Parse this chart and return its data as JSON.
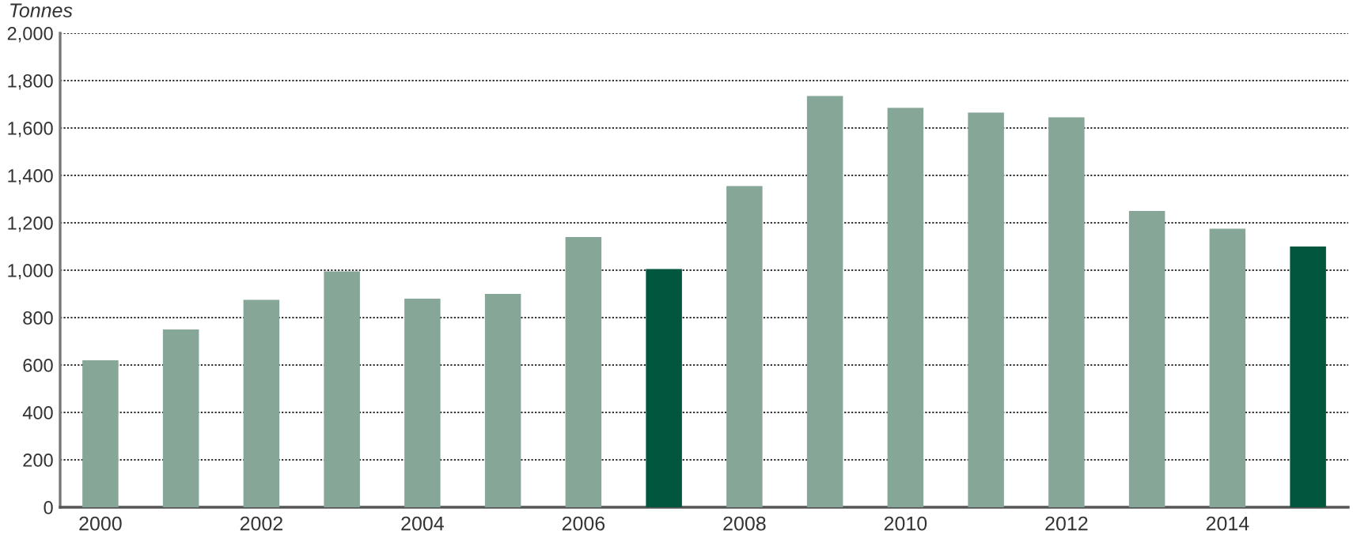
{
  "chart_data": {
    "type": "bar",
    "ylabel": "Tonnes",
    "categories": [
      "2000",
      null,
      "2002",
      null,
      "2004",
      null,
      "2006",
      null,
      "2008",
      null,
      "2010",
      null,
      "2012",
      null,
      "2014",
      null
    ],
    "values": [
      615,
      745,
      870,
      990,
      875,
      895,
      1135,
      1000,
      1350,
      1730,
      1680,
      1660,
      1640,
      1245,
      1170,
      1095
    ],
    "colors": [
      "#86a698",
      "#86a698",
      "#86a698",
      "#86a698",
      "#86a698",
      "#86a698",
      "#86a698",
      "#00573d",
      "#86a698",
      "#86a698",
      "#86a698",
      "#86a698",
      "#86a698",
      "#86a698",
      "#86a698",
      "#00573d"
    ],
    "ylim": [
      0,
      2000
    ],
    "yticks": [
      {
        "value": 0,
        "label": "0"
      },
      {
        "value": 200,
        "label": "200"
      },
      {
        "value": 400,
        "label": "400"
      },
      {
        "value": 600,
        "label": "600"
      },
      {
        "value": 800,
        "label": "800"
      },
      {
        "value": 1000,
        "label": "1,000"
      },
      {
        "value": 1200,
        "label": "1,200"
      },
      {
        "value": 1400,
        "label": "1,400"
      },
      {
        "value": 1600,
        "label": "1,600"
      },
      {
        "value": 1800,
        "label": "1,800"
      },
      {
        "value": 2000,
        "label": "2,000"
      }
    ],
    "grid": "y",
    "legend": false
  }
}
